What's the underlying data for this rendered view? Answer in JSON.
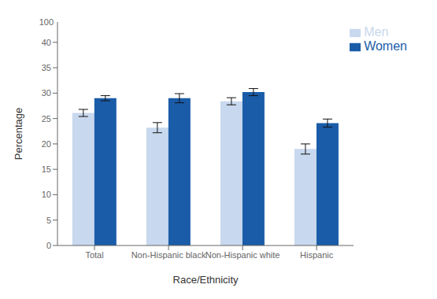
{
  "chart_data": {
    "type": "bar",
    "xlabel": "Race/Ethnicity",
    "ylabel": "Percentage",
    "categories": [
      "Total",
      "Non-Hispanic black",
      "Non-Hispanic white",
      "Hispanic"
    ],
    "series": [
      {
        "name": "Men",
        "color": "#c8d8ee",
        "values": [
          26.1,
          23.2,
          28.4,
          19.0
        ],
        "errors": [
          0.7,
          1.0,
          0.7,
          1.0
        ]
      },
      {
        "name": "Women",
        "color": "#1a5ca8",
        "values": [
          29.0,
          29.0,
          30.2,
          24.1
        ],
        "errors": [
          0.5,
          0.9,
          0.7,
          0.8
        ]
      }
    ],
    "ylim": [
      0,
      44
    ],
    "yticks": [
      0,
      5,
      10,
      15,
      20,
      25,
      30,
      35,
      40
    ],
    "annotations": [
      "100"
    ],
    "legend": "upper right",
    "grid": false
  }
}
